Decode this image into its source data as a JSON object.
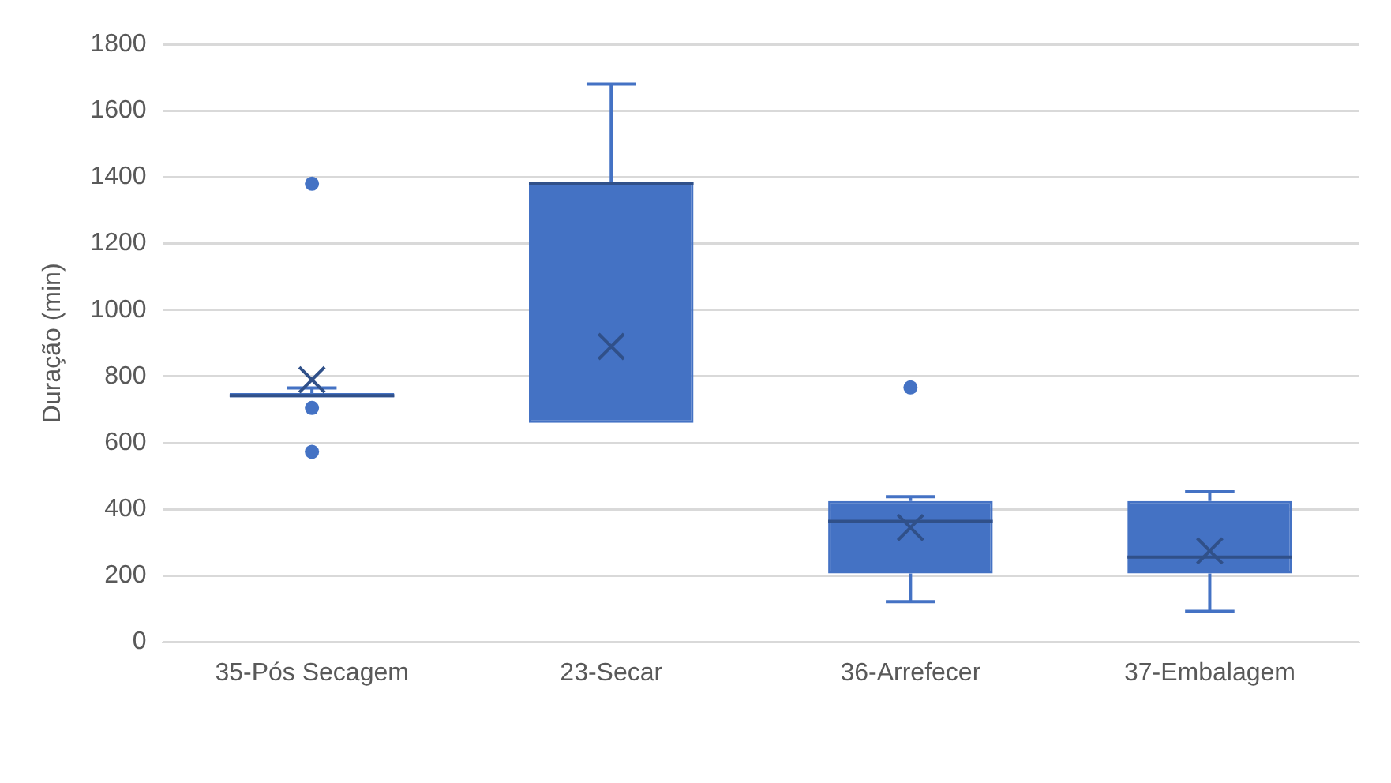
{
  "chart_data": {
    "type": "box",
    "ylabel": "Duração (min)",
    "categories": [
      "35-Pós Secagem",
      "23-Secar",
      "36-Arrefecer",
      "37-Embalagem"
    ],
    "color": "#4472c4",
    "boxes": [
      {
        "low": 737,
        "q1": 737,
        "median": 742,
        "q3": 750,
        "high": 765,
        "mean": 790,
        "outliers": [
          1380,
          705,
          573
        ]
      },
      {
        "low": 660,
        "q1": 660,
        "median": 1380,
        "q3": 1385,
        "high": 1680,
        "mean": 890
      },
      {
        "low": 122,
        "q1": 207,
        "median": 364,
        "q3": 425,
        "high": 438,
        "mean": 345,
        "outliers": [
          767
        ]
      },
      {
        "low": 93,
        "q1": 207,
        "median": 256,
        "q3": 425,
        "high": 453,
        "mean": 275
      }
    ],
    "ylim": [
      0,
      1800
    ],
    "yticks": [
      0,
      200,
      400,
      600,
      800,
      1000,
      1200,
      1400,
      1600,
      1800
    ],
    "grid": "y",
    "legend": false
  }
}
